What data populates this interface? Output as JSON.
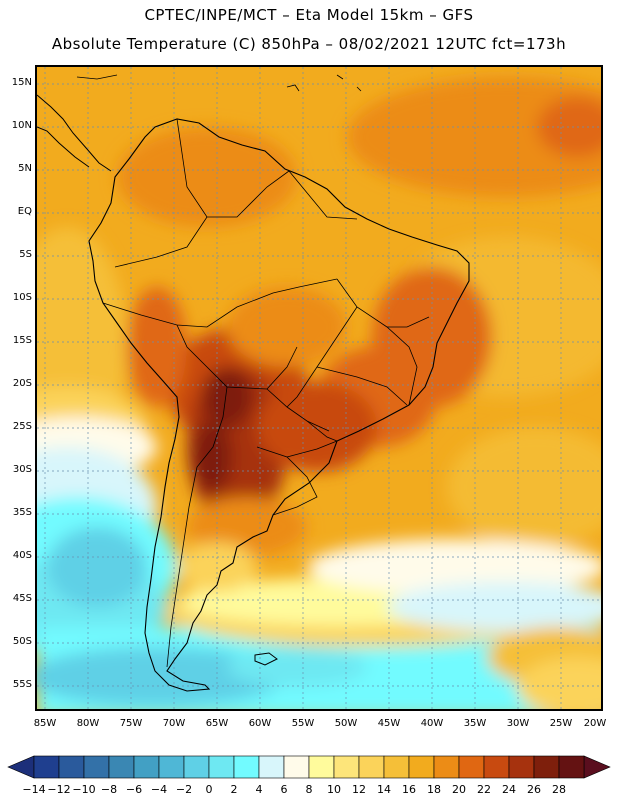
{
  "header": {
    "line1": "CPTEC/INPE/MCT  –  Eta Model 15km  –  GFS",
    "line2": "Absolute Temperature (C) 850hPa – 08/02/2021 12UTC fct=173h"
  },
  "map": {
    "lat_labels": [
      "15N",
      "10N",
      "5N",
      "EQ",
      "5S",
      "10S",
      "15S",
      "20S",
      "25S",
      "30S",
      "35S",
      "40S",
      "45S",
      "50S",
      "55S"
    ],
    "lon_labels": [
      "85W",
      "80W",
      "75W",
      "70W",
      "65W",
      "60W",
      "55W",
      "50W",
      "45W",
      "40W",
      "35W",
      "30W",
      "25W",
      "20W"
    ]
  },
  "colorbar": {
    "labels": [
      "-14",
      "-12",
      "-10",
      "-8",
      "-6",
      "-4",
      "-2",
      "0",
      "2",
      "4",
      "6",
      "8",
      "10",
      "12",
      "14",
      "16",
      "18",
      "20",
      "22",
      "24",
      "26",
      "28"
    ],
    "colors": [
      "#1f3f8f",
      "#2a5a9c",
      "#3371a8",
      "#3a87b3",
      "#42a0c4",
      "#4fb7d6",
      "#5fd0e6",
      "#6ee8f2",
      "#72fbff",
      "#d8f6fb",
      "#fffbea",
      "#fffb9c",
      "#fde57a",
      "#fbd35a",
      "#f5bf38",
      "#f2ab1e",
      "#ec8c16",
      "#e06712",
      "#c84a10",
      "#a6320e",
      "#7e1f0c",
      "#641212"
    ],
    "min_color": "#1c2f7a",
    "max_color": "#5a0e1e"
  }
}
